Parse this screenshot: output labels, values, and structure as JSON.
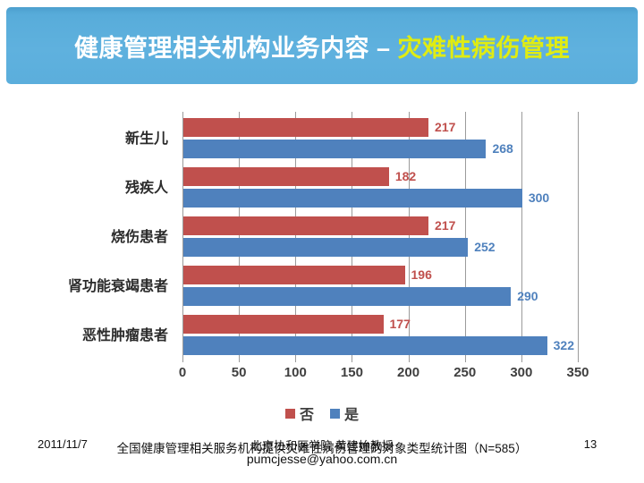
{
  "slide": {
    "title": {
      "part1": "健康管理相关机构业务内容 – ",
      "part2": "灾难性病伤管理"
    },
    "footer": {
      "date": "2011/11/7",
      "caption": "全国健康管理相关服务机构提供灾难性病伤管理的对象类型统计图（N=585）",
      "affiliation": "北京协和医学院 黄建始教授",
      "email": "pumcjesse@yahoo.com.cn",
      "page_number": "13"
    }
  },
  "chart_data": {
    "type": "bar",
    "orientation": "horizontal",
    "title": "",
    "xlabel": "",
    "ylabel": "",
    "categories": [
      "新生儿",
      "残疾人",
      "烧伤患者",
      "肾功能衰竭患者",
      "恶性肿瘤患者"
    ],
    "series": [
      {
        "name": "否",
        "color": "#C0504D",
        "values": [
          217,
          182,
          217,
          196,
          177
        ]
      },
      {
        "name": "是",
        "color": "#4F81BD",
        "values": [
          268,
          300,
          252,
          290,
          322
        ]
      }
    ],
    "xlim": [
      0,
      350
    ],
    "xticks": [
      0,
      50,
      100,
      150,
      200,
      250,
      300,
      350
    ],
    "grid": true,
    "legend_position": "bottom",
    "value_labels": true
  },
  "colors": {
    "header_blue": "#5BAEDC",
    "title_highlight": "#E0EC12",
    "bar_no": "#C0504D",
    "bar_yes": "#4F81BD",
    "gridline": "#9B9B9B"
  }
}
